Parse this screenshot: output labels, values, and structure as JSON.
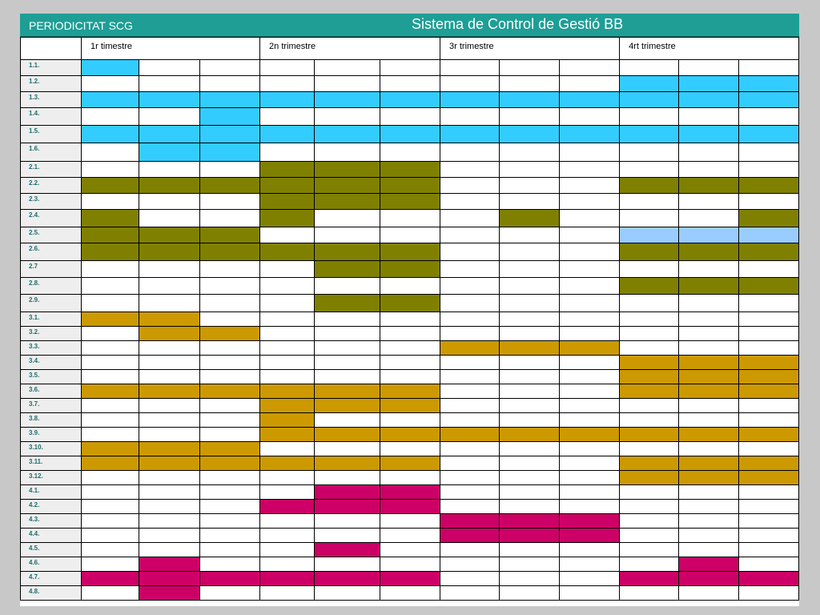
{
  "header": {
    "left_title": "PERIODICITAT SCG",
    "right_title": "Sistema de Control de Gestió BB"
  },
  "quarters": [
    "1r timestre",
    "2n trimestre",
    "3r trimestre",
    "4rt trimestre"
  ],
  "colors": [
    "#ffffff",
    "#33ccff",
    "#808000",
    "#cc9900",
    "#cc0066",
    "#99ccff"
  ],
  "rows": [
    {
      "label": "1.1.",
      "cells": [
        1,
        0,
        0,
        0,
        0,
        0,
        0,
        0,
        0,
        0,
        0,
        0
      ]
    },
    {
      "label": "1.2.",
      "cells": [
        0,
        0,
        0,
        0,
        0,
        0,
        0,
        0,
        0,
        1,
        1,
        1
      ]
    },
    {
      "label": "1.3.",
      "cells": [
        1,
        1,
        1,
        1,
        1,
        1,
        1,
        1,
        1,
        1,
        1,
        1
      ]
    },
    {
      "label": "1.4.",
      "cells": [
        0,
        0,
        1,
        0,
        0,
        0,
        0,
        0,
        0,
        0,
        0,
        0
      ]
    },
    {
      "label": "1.5.",
      "cells": [
        1,
        1,
        1,
        1,
        1,
        1,
        1,
        1,
        1,
        1,
        1,
        1
      ]
    },
    {
      "label": "1.6.",
      "cells": [
        0,
        1,
        1,
        0,
        0,
        0,
        0,
        0,
        0,
        0,
        0,
        0
      ]
    },
    {
      "label": "2.1.",
      "cells": [
        0,
        0,
        0,
        2,
        2,
        2,
        0,
        0,
        0,
        0,
        0,
        0
      ]
    },
    {
      "label": "2.2.",
      "cells": [
        2,
        2,
        2,
        2,
        2,
        2,
        0,
        0,
        0,
        2,
        2,
        2
      ]
    },
    {
      "label": "2.3.",
      "cells": [
        0,
        0,
        0,
        2,
        2,
        2,
        0,
        0,
        0,
        0,
        0,
        0
      ]
    },
    {
      "label": "2.4.",
      "cells": [
        2,
        0,
        0,
        2,
        0,
        0,
        0,
        2,
        0,
        0,
        0,
        2
      ]
    },
    {
      "label": "2.5.",
      "cells": [
        2,
        2,
        2,
        0,
        0,
        0,
        0,
        0,
        0,
        5,
        5,
        5
      ]
    },
    {
      "label": "2.6.",
      "cells": [
        2,
        2,
        2,
        2,
        2,
        2,
        0,
        0,
        0,
        2,
        2,
        2
      ]
    },
    {
      "label": "2.7",
      "cells": [
        0,
        0,
        0,
        0,
        2,
        2,
        0,
        0,
        0,
        0,
        0,
        0
      ]
    },
    {
      "label": "2.8.",
      "cells": [
        0,
        0,
        0,
        0,
        0,
        0,
        0,
        0,
        0,
        2,
        2,
        2
      ]
    },
    {
      "label": "2.9.",
      "cells": [
        0,
        0,
        0,
        0,
        2,
        2,
        0,
        0,
        0,
        0,
        0,
        0
      ]
    },
    {
      "label": "3.1.",
      "cells": [
        3,
        3,
        0,
        0,
        0,
        0,
        0,
        0,
        0,
        0,
        0,
        0
      ]
    },
    {
      "label": "3.2.",
      "cells": [
        0,
        3,
        3,
        0,
        0,
        0,
        0,
        0,
        0,
        0,
        0,
        0
      ]
    },
    {
      "label": "3.3.",
      "cells": [
        0,
        0,
        0,
        0,
        0,
        0,
        3,
        3,
        3,
        0,
        0,
        0
      ]
    },
    {
      "label": "3.4.",
      "cells": [
        0,
        0,
        0,
        0,
        0,
        0,
        0,
        0,
        0,
        3,
        3,
        3
      ]
    },
    {
      "label": "3.5.",
      "cells": [
        0,
        0,
        0,
        0,
        0,
        0,
        0,
        0,
        0,
        3,
        3,
        3
      ]
    },
    {
      "label": "3.6.",
      "cells": [
        3,
        3,
        3,
        3,
        3,
        3,
        0,
        0,
        0,
        3,
        3,
        3
      ]
    },
    {
      "label": "3.7.",
      "cells": [
        0,
        0,
        0,
        3,
        3,
        3,
        0,
        0,
        0,
        0,
        0,
        0
      ]
    },
    {
      "label": "3.8.",
      "cells": [
        0,
        0,
        0,
        3,
        0,
        0,
        0,
        0,
        0,
        0,
        0,
        0
      ]
    },
    {
      "label": "3.9.",
      "cells": [
        0,
        0,
        0,
        3,
        3,
        3,
        3,
        3,
        3,
        3,
        3,
        3
      ]
    },
    {
      "label": "3.10.",
      "cells": [
        3,
        3,
        3,
        0,
        0,
        0,
        0,
        0,
        0,
        0,
        0,
        0
      ]
    },
    {
      "label": "3.11.",
      "cells": [
        3,
        3,
        3,
        3,
        3,
        3,
        0,
        0,
        0,
        3,
        3,
        3
      ]
    },
    {
      "label": "3.12.",
      "cells": [
        0,
        0,
        0,
        0,
        0,
        0,
        0,
        0,
        0,
        3,
        3,
        3
      ]
    },
    {
      "label": "4.1.",
      "cells": [
        0,
        0,
        0,
        0,
        4,
        4,
        0,
        0,
        0,
        0,
        0,
        0
      ]
    },
    {
      "label": "4.2.",
      "cells": [
        0,
        0,
        0,
        4,
        4,
        4,
        0,
        0,
        0,
        0,
        0,
        0
      ]
    },
    {
      "label": "4.3.",
      "cells": [
        0,
        0,
        0,
        0,
        0,
        0,
        4,
        4,
        4,
        0,
        0,
        0
      ]
    },
    {
      "label": "4.4.",
      "cells": [
        0,
        0,
        0,
        0,
        0,
        0,
        4,
        4,
        4,
        0,
        0,
        0
      ]
    },
    {
      "label": "4.5.",
      "cells": [
        0,
        0,
        0,
        0,
        4,
        0,
        0,
        0,
        0,
        0,
        0,
        0
      ]
    },
    {
      "label": "4.6.",
      "cells": [
        0,
        4,
        0,
        0,
        0,
        0,
        0,
        0,
        0,
        0,
        4,
        0
      ]
    },
    {
      "label": "4.7.",
      "cells": [
        4,
        4,
        4,
        4,
        4,
        4,
        0,
        0,
        0,
        4,
        4,
        4
      ]
    },
    {
      "label": "4.8.",
      "cells": [
        0,
        4,
        0,
        0,
        0,
        0,
        0,
        0,
        0,
        0,
        0,
        0
      ]
    }
  ]
}
